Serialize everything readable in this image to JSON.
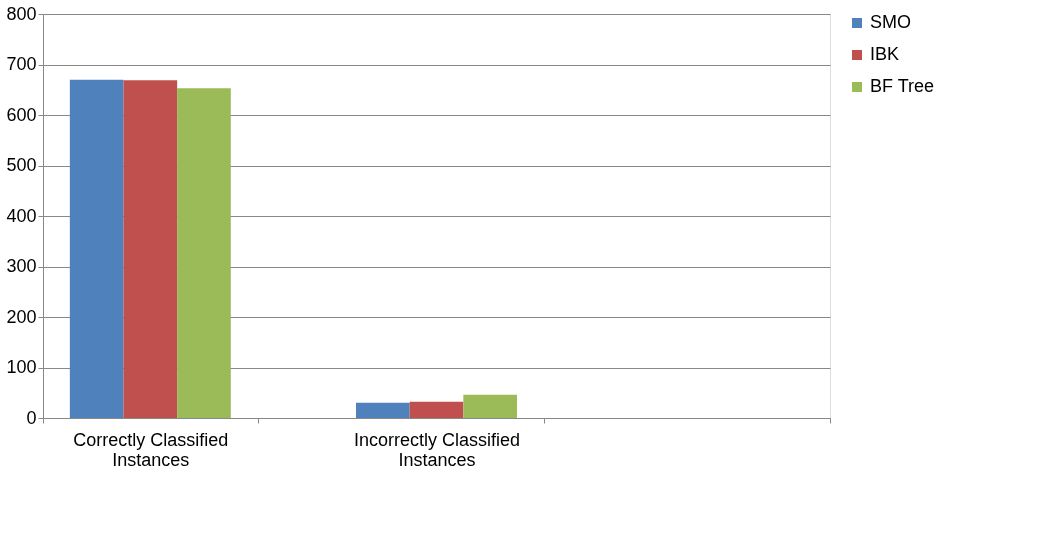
{
  "chart_data": {
    "type": "bar",
    "categories": [
      "Correctly Classified Instances",
      "Incorrectly Classified Instances",
      null
    ],
    "series": [
      {
        "name": "SMO",
        "color": "#4f81bd",
        "values": [
          670,
          30,
          null
        ]
      },
      {
        "name": "IBK",
        "color": "#c0504d",
        "values": [
          669,
          32,
          null
        ]
      },
      {
        "name": "BF Tree",
        "color": "#9bbb59",
        "values": [
          653,
          46,
          null
        ]
      }
    ],
    "ylim": [
      0,
      800
    ],
    "yticks": [
      0,
      100,
      200,
      300,
      400,
      500,
      600,
      700,
      800
    ],
    "grid": "y",
    "legend": "right"
  }
}
